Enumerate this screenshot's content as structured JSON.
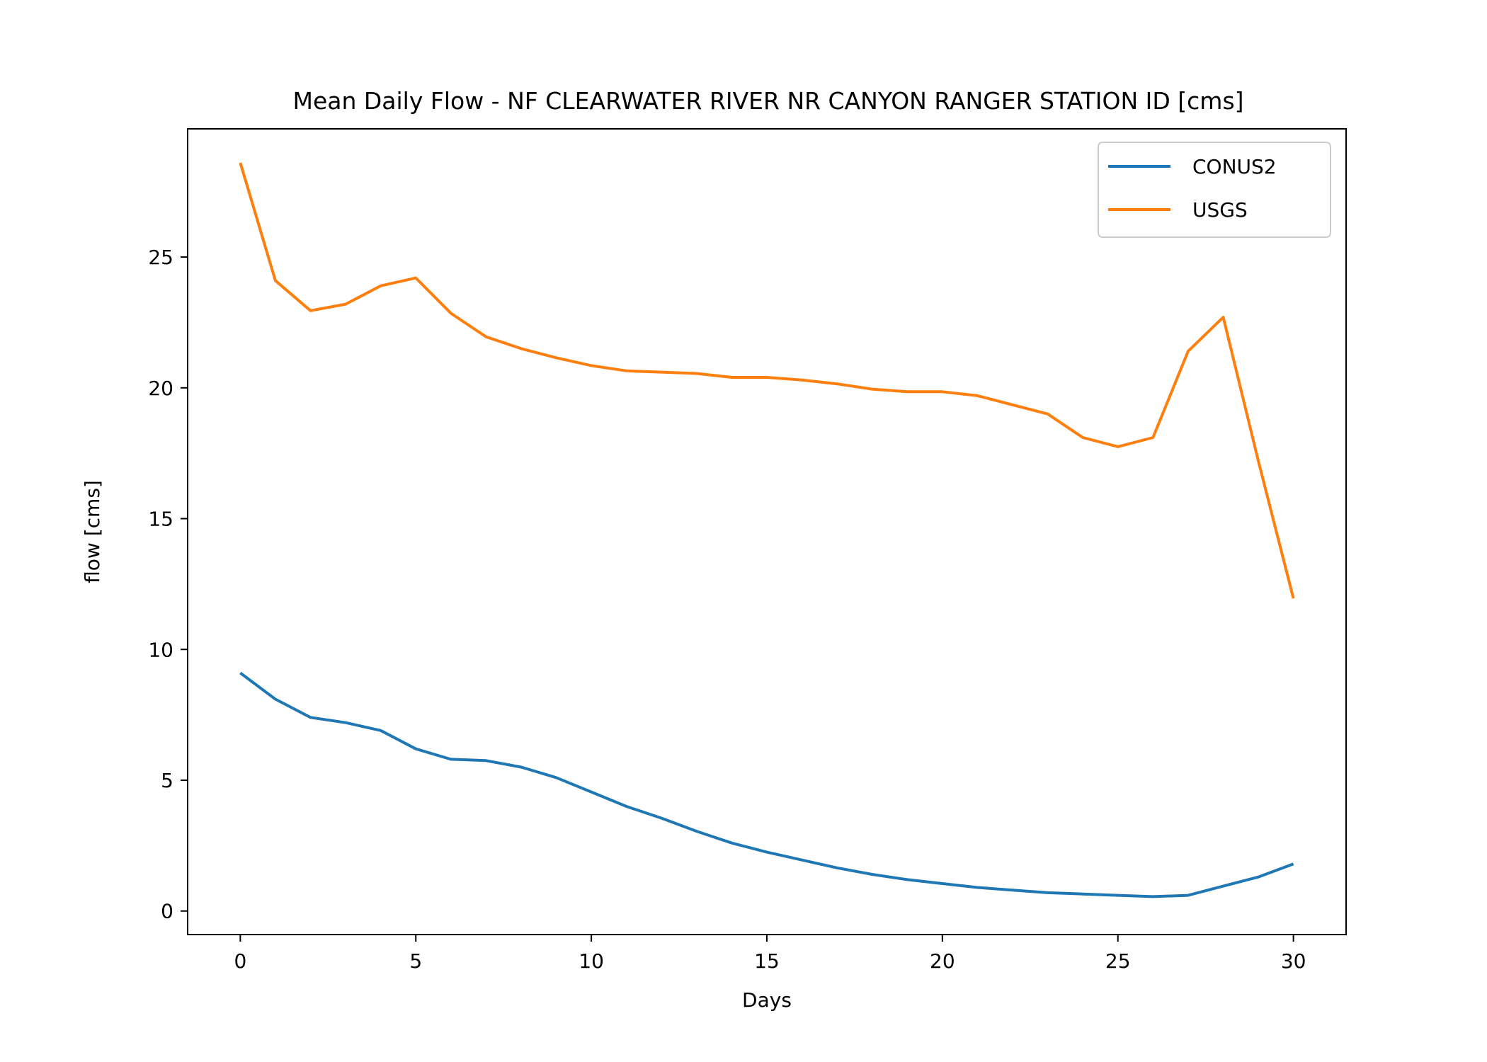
{
  "chart_data": {
    "type": "line",
    "title": "Mean Daily Flow - NF CLEARWATER RIVER NR CANYON RANGER STATION ID [cms]",
    "xlabel": "Days",
    "ylabel": "flow [cms]",
    "xlim": [
      -1.5,
      31.5
    ],
    "ylim": [
      -0.9,
      29.9
    ],
    "xticks": [
      0,
      5,
      10,
      15,
      20,
      25,
      30
    ],
    "yticks": [
      0,
      5,
      10,
      15,
      20,
      25
    ],
    "grid": false,
    "legend_position": "top-right",
    "x": [
      0,
      1,
      2,
      3,
      4,
      5,
      6,
      7,
      8,
      9,
      10,
      11,
      12,
      13,
      14,
      15,
      16,
      17,
      18,
      19,
      20,
      21,
      22,
      23,
      24,
      25,
      26,
      27,
      28,
      29,
      30
    ],
    "series": [
      {
        "name": "CONUS2",
        "color": "#1f77b4",
        "values": [
          9.1,
          8.1,
          7.4,
          7.2,
          6.9,
          6.2,
          5.8,
          5.75,
          5.5,
          5.1,
          4.55,
          4.0,
          3.55,
          3.05,
          2.6,
          2.25,
          1.95,
          1.65,
          1.4,
          1.2,
          1.05,
          0.9,
          0.8,
          0.7,
          0.65,
          0.6,
          0.55,
          0.6,
          0.95,
          1.3,
          1.8
        ]
      },
      {
        "name": "USGS",
        "color": "#ff7f0e",
        "values": [
          28.6,
          24.1,
          22.95,
          23.2,
          23.9,
          24.2,
          22.85,
          21.95,
          21.5,
          21.15,
          20.85,
          20.65,
          20.6,
          20.55,
          20.4,
          20.4,
          20.3,
          20.15,
          19.95,
          19.85,
          19.85,
          19.7,
          19.35,
          19.0,
          18.1,
          17.75,
          18.1,
          21.4,
          22.7,
          17.2,
          11.95
        ]
      }
    ]
  }
}
